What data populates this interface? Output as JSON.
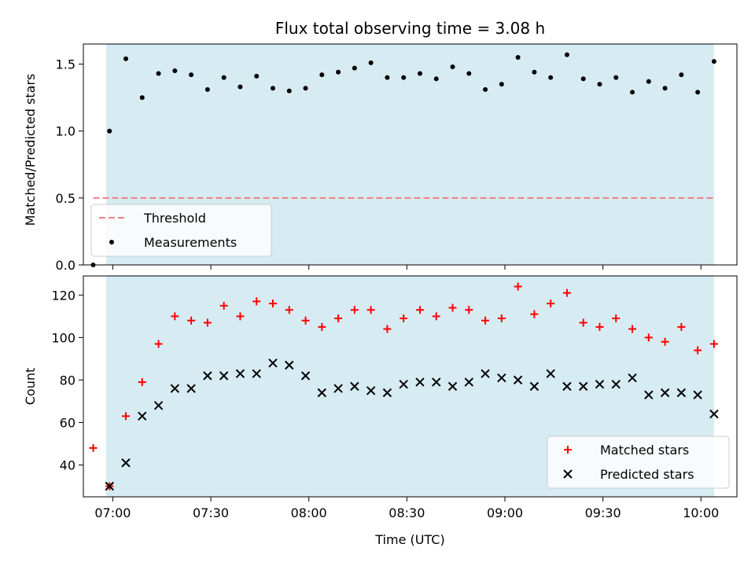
{
  "chart_data": [
    {
      "type": "scatter",
      "title": "Flux total observing time = 3.08 h",
      "ylabel": "Matched/Predicted stars",
      "xlabel": "",
      "xlim": [
        "06:51",
        "10:11"
      ],
      "ylim": [
        0,
        1.65
      ],
      "yticks": [
        0.0,
        0.5,
        1.0,
        1.5
      ],
      "ytick_labels": [
        "0.0",
        "0.5",
        "1.0",
        "1.5"
      ],
      "shaded_span": {
        "start": "06:58",
        "end": "10:04",
        "color": "#add8e6"
      },
      "grid": false,
      "legend": {
        "position": "lower-left",
        "entries": [
          "Threshold",
          "Measurements"
        ]
      },
      "series": [
        {
          "name": "Threshold",
          "kind": "dashed-line",
          "color": "#f08080",
          "x": [
            "06:54",
            "10:04"
          ],
          "y": [
            0.5,
            0.5
          ]
        },
        {
          "name": "Measurements",
          "kind": "dot",
          "color": "#000000",
          "x": [
            "06:54",
            "06:59",
            "07:04",
            "07:09",
            "07:14",
            "07:19",
            "07:24",
            "07:29",
            "07:34",
            "07:39",
            "07:44",
            "07:49",
            "07:54",
            "07:59",
            "08:04",
            "08:09",
            "08:14",
            "08:19",
            "08:24",
            "08:29",
            "08:34",
            "08:39",
            "08:44",
            "08:49",
            "08:54",
            "08:59",
            "09:04",
            "09:09",
            "09:14",
            "09:19",
            "09:24",
            "09:29",
            "09:34",
            "09:39",
            "09:44",
            "09:49",
            "09:54",
            "09:59",
            "10:04"
          ],
          "y": [
            0.0,
            1.0,
            1.54,
            1.25,
            1.43,
            1.45,
            1.42,
            1.31,
            1.4,
            1.33,
            1.41,
            1.32,
            1.3,
            1.32,
            1.42,
            1.44,
            1.47,
            1.51,
            1.4,
            1.4,
            1.43,
            1.39,
            1.48,
            1.43,
            1.31,
            1.35,
            1.55,
            1.44,
            1.4,
            1.57,
            1.39,
            1.35,
            1.4,
            1.29,
            1.37,
            1.32,
            1.42,
            1.29,
            1.52
          ]
        }
      ]
    },
    {
      "type": "scatter",
      "title": "",
      "ylabel": "Count",
      "xlabel": "Time (UTC)",
      "xlim": [
        "06:51",
        "10:11"
      ],
      "ylim": [
        25,
        129
      ],
      "yticks": [
        40,
        60,
        80,
        100,
        120
      ],
      "ytick_labels": [
        "40",
        "60",
        "80",
        "100",
        "120"
      ],
      "xticks": [
        "07:00",
        "07:30",
        "08:00",
        "08:30",
        "09:00",
        "09:30",
        "10:00"
      ],
      "xtick_labels": [
        "07:00",
        "07:30",
        "08:00",
        "08:30",
        "09:00",
        "09:30",
        "10:00"
      ],
      "shaded_span": {
        "start": "06:58",
        "end": "10:04",
        "color": "#add8e6"
      },
      "grid": false,
      "legend": {
        "position": "lower-right",
        "entries": [
          "Matched stars",
          "Predicted stars"
        ]
      },
      "series": [
        {
          "name": "Matched stars",
          "kind": "plus",
          "color": "#ff0000",
          "x": [
            "06:54",
            "06:59",
            "07:04",
            "07:09",
            "07:14",
            "07:19",
            "07:24",
            "07:29",
            "07:34",
            "07:39",
            "07:44",
            "07:49",
            "07:54",
            "07:59",
            "08:04",
            "08:09",
            "08:14",
            "08:19",
            "08:24",
            "08:29",
            "08:34",
            "08:39",
            "08:44",
            "08:49",
            "08:54",
            "08:59",
            "09:04",
            "09:09",
            "09:14",
            "09:19",
            "09:24",
            "09:29",
            "09:34",
            "09:39",
            "09:44",
            "09:49",
            "09:54",
            "09:59",
            "10:04"
          ],
          "y": [
            48,
            30,
            63,
            79,
            97,
            110,
            108,
            107,
            115,
            110,
            117,
            116,
            113,
            108,
            105,
            109,
            113,
            113,
            104,
            109,
            113,
            110,
            114,
            113,
            108,
            109,
            124,
            111,
            116,
            121,
            107,
            105,
            109,
            104,
            100,
            98,
            105,
            94,
            97
          ]
        },
        {
          "name": "Predicted stars",
          "kind": "x",
          "color": "#000000",
          "x": [
            "06:59",
            "07:04",
            "07:09",
            "07:14",
            "07:19",
            "07:24",
            "07:29",
            "07:34",
            "07:39",
            "07:44",
            "07:49",
            "07:54",
            "07:59",
            "08:04",
            "08:09",
            "08:14",
            "08:19",
            "08:24",
            "08:29",
            "08:34",
            "08:39",
            "08:44",
            "08:49",
            "08:54",
            "08:59",
            "09:04",
            "09:09",
            "09:14",
            "09:19",
            "09:24",
            "09:29",
            "09:34",
            "09:39",
            "09:44",
            "09:49",
            "09:54",
            "09:59",
            "10:04"
          ],
          "y": [
            30,
            41,
            63,
            68,
            76,
            76,
            82,
            82,
            83,
            83,
            88,
            87,
            82,
            74,
            76,
            77,
            75,
            74,
            78,
            79,
            79,
            77,
            79,
            83,
            81,
            80,
            77,
            83,
            77,
            77,
            78,
            78,
            81,
            73,
            74,
            74,
            73,
            64
          ]
        }
      ]
    }
  ]
}
